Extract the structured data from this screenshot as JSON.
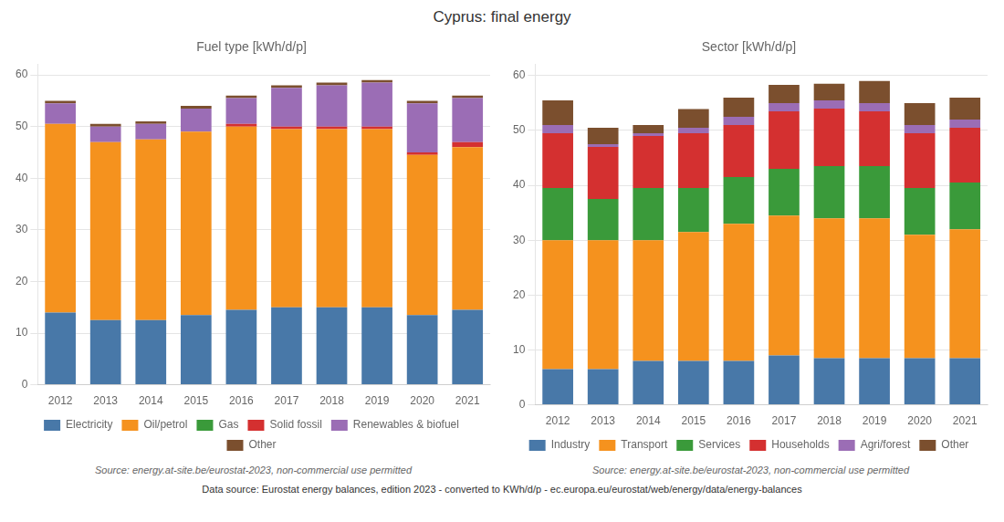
{
  "title": "Cyprus: final energy",
  "annotations": [
    "Data source: Eurostat energy balances, edition 2023 - converted to KWh/d/p - ec.europa.eu/eurostat/web/energy/data/energy-balances"
  ],
  "chart_data": [
    {
      "type": "bar",
      "title": "Fuel type [kWh/d/p]",
      "annotations": [
        "Source: energy.at-site.be/eurostat-2023, non-commercial use permitted"
      ],
      "categories": [
        "2012",
        "2013",
        "2014",
        "2015",
        "2016",
        "2017",
        "2018",
        "2019",
        "2020",
        "2021"
      ],
      "series": [
        {
          "name": "Electricity",
          "color": "#4878a8",
          "values": [
            14.0,
            12.5,
            12.5,
            13.5,
            14.5,
            15.0,
            15.0,
            15.0,
            13.5,
            14.5
          ]
        },
        {
          "name": "Oil/petrol",
          "color": "#f5921e",
          "values": [
            36.5,
            34.5,
            35.0,
            35.5,
            35.5,
            34.5,
            34.5,
            34.5,
            31.0,
            31.5
          ]
        },
        {
          "name": "Gas",
          "color": "#3a9a3a",
          "values": [
            0.0,
            0.0,
            0.0,
            0.0,
            0.0,
            0.0,
            0.0,
            0.0,
            0.0,
            0.0
          ]
        },
        {
          "name": "Solid fossil",
          "color": "#d43030",
          "values": [
            0.0,
            0.0,
            0.0,
            0.0,
            0.5,
            0.5,
            0.5,
            0.5,
            0.5,
            1.0
          ]
        },
        {
          "name": "Renewables & biofuel",
          "color": "#9b6db5",
          "values": [
            4.0,
            3.0,
            3.0,
            4.5,
            5.0,
            7.5,
            8.0,
            8.5,
            9.5,
            8.5
          ]
        },
        {
          "name": "Other",
          "color": "#7b4f2e",
          "values": [
            0.5,
            0.5,
            0.5,
            0.5,
            0.5,
            0.5,
            0.5,
            0.5,
            0.5,
            0.5
          ]
        }
      ],
      "ylim": [
        0,
        62
      ],
      "yticks": [
        0,
        10,
        20,
        30,
        40,
        50,
        60
      ],
      "stacked": true,
      "grid": true,
      "legend": "bottom"
    },
    {
      "type": "bar",
      "title": "Sector [kWh/d/p]",
      "annotations": [
        "Source: energy.at-site.be/eurostat-2023, non-commercial use permitted"
      ],
      "categories": [
        "2012",
        "2013",
        "2014",
        "2015",
        "2016",
        "2017",
        "2018",
        "2019",
        "2020",
        "2021"
      ],
      "series": [
        {
          "name": "Industry",
          "color": "#4878a8",
          "values": [
            6.5,
            6.5,
            8.0,
            8.0,
            8.0,
            9.0,
            8.5,
            8.5,
            8.5,
            8.5
          ]
        },
        {
          "name": "Transport",
          "color": "#f5921e",
          "values": [
            23.5,
            23.5,
            22.0,
            23.5,
            25.0,
            25.5,
            25.5,
            25.5,
            22.5,
            23.5
          ]
        },
        {
          "name": "Services",
          "color": "#3a9a3a",
          "values": [
            9.5,
            7.5,
            9.5,
            8.0,
            8.5,
            8.5,
            9.5,
            9.5,
            8.5,
            8.5
          ]
        },
        {
          "name": "Households",
          "color": "#d43030",
          "values": [
            10.0,
            9.5,
            9.5,
            10.0,
            9.5,
            10.5,
            10.5,
            10.0,
            10.0,
            10.0
          ]
        },
        {
          "name": "Agri/forest",
          "color": "#9b6db5",
          "values": [
            1.5,
            0.5,
            0.5,
            1.0,
            1.5,
            1.5,
            1.5,
            1.5,
            1.5,
            1.5
          ]
        },
        {
          "name": "Other",
          "color": "#7b4f2e",
          "values": [
            4.5,
            3.0,
            1.5,
            3.4,
            3.5,
            3.3,
            3.0,
            4.0,
            4.0,
            4.0
          ]
        }
      ],
      "ylim": [
        0,
        62
      ],
      "yticks": [
        0,
        10,
        20,
        30,
        40,
        50,
        60
      ],
      "stacked": true,
      "grid": true,
      "legend": "bottom"
    }
  ]
}
